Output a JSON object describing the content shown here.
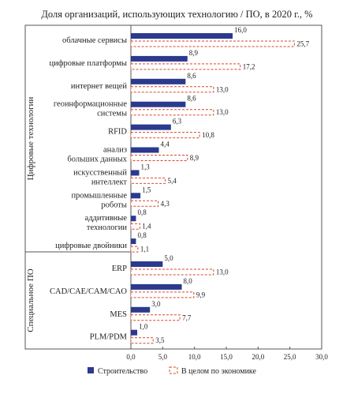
{
  "chart_data": {
    "type": "bar",
    "orientation": "horizontal",
    "title": "Доля организаций, использующих технологию / ПО, в 2020 г., %",
    "groups": [
      {
        "label": "Цифровые технологии",
        "count": 10
      },
      {
        "label": "Специальное ПО",
        "count": 4
      }
    ],
    "categories": [
      [
        "облачные сервисы"
      ],
      [
        "цифровые платформы"
      ],
      [
        "интернет вещей"
      ],
      [
        "геоинформационные",
        "системы"
      ],
      [
        "RFID"
      ],
      [
        "анализ",
        "больших данных"
      ],
      [
        "искусственный",
        "интеллект"
      ],
      [
        "промышленные",
        "роботы"
      ],
      [
        "аддитивные",
        "технологии"
      ],
      [
        "цифровые двойники"
      ],
      [
        "ERP"
      ],
      [
        "CAD/CAE/CAM/CAO"
      ],
      [
        "MES"
      ],
      [
        "PLM/PDM"
      ]
    ],
    "series": [
      {
        "name": "Строительство",
        "color": "#2b3a8c",
        "style": "solid",
        "values": [
          16.0,
          8.9,
          8.6,
          8.6,
          6.3,
          4.4,
          1.3,
          1.5,
          0.8,
          0.8,
          5.0,
          8.0,
          3.0,
          1.0
        ],
        "labels": [
          "16,0",
          "8,9",
          "8,6",
          "8,6",
          "6,3",
          "4,4",
          "1,3",
          "1,5",
          "0,8",
          "0,8",
          "5,0",
          "8,0",
          "3,0",
          "1,0"
        ]
      },
      {
        "name": "В целом по экономике",
        "color": "#d9472b",
        "style": "dashed",
        "values": [
          25.7,
          17.2,
          13.0,
          13.0,
          10.8,
          8.9,
          5.4,
          4.3,
          1.4,
          1.1,
          13.0,
          9.9,
          7.7,
          3.5
        ],
        "labels": [
          "25,7",
          "17,2",
          "13,0",
          "13,0",
          "10,8",
          "8,9",
          "5,4",
          "4,3",
          "1,4",
          "1,1",
          "13,0",
          "9,9",
          "7,7",
          "3,5"
        ]
      }
    ],
    "xlim": [
      0,
      30
    ],
    "xticks": [
      0,
      5,
      10,
      15,
      20,
      25,
      30
    ],
    "xtick_labels": [
      "0,0",
      "5,0",
      "10,0",
      "15,0",
      "20,0",
      "25,0",
      "30,0"
    ],
    "grid": false,
    "legend_position": "bottom"
  }
}
